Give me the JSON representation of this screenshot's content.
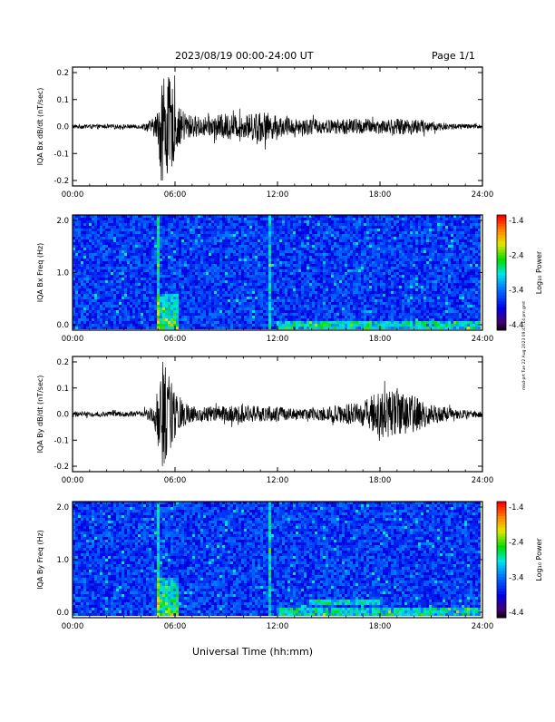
{
  "header": {
    "title": "2023/08/19  00:00-24:00 UT",
    "page": "Page 1/1"
  },
  "xaxis": {
    "label": "Universal Time (hh:mm)",
    "ticks": [
      "00:00",
      "06:00",
      "12:00",
      "18:00",
      "24:00"
    ],
    "range_hours": [
      0,
      24
    ]
  },
  "side_note": "mkd-prt Tue 22 Aug 2023 09:47:14 pm gmt",
  "chart_data": [
    {
      "type": "line",
      "ylabel": "IQA Bx dB/dt (nT/sec)",
      "yticks": [
        "0.2",
        "0.1",
        "0.0",
        "-0.1",
        "-0.2"
      ],
      "ylim": [
        -0.2,
        0.2
      ],
      "envelope": {
        "hours": [
          0,
          1,
          2,
          3,
          4,
          4.7,
          5.0,
          5.2,
          5.5,
          5.8,
          6.2,
          7,
          8,
          9,
          10,
          11,
          12,
          13,
          14,
          15,
          16,
          17,
          18,
          19,
          20,
          21,
          22,
          23,
          24
        ],
        "amplitude": [
          0.008,
          0.008,
          0.007,
          0.008,
          0.008,
          0.03,
          0.06,
          0.22,
          0.2,
          0.16,
          0.07,
          0.04,
          0.035,
          0.05,
          0.04,
          0.06,
          0.04,
          0.03,
          0.03,
          0.025,
          0.03,
          0.03,
          0.025,
          0.03,
          0.03,
          0.02,
          0.012,
          0.01,
          0.008
        ]
      },
      "color": "#000000"
    },
    {
      "type": "heatmap",
      "ylabel": "IQA Bx Freq (Hz)",
      "yticks": [
        "2.0",
        "1.0",
        "0.0"
      ],
      "ylim": [
        0,
        2.0
      ],
      "colorbar": {
        "label": "Log₁₀ Power",
        "ticks": [
          "-1.4",
          "-2.4",
          "-3.4",
          "-4.4"
        ],
        "range": [
          -4.4,
          -1.4
        ]
      },
      "features": [
        {
          "kind": "vertical-line",
          "hour": 5.1
        },
        {
          "kind": "vertical-line",
          "hour": 11.6
        },
        {
          "kind": "burst",
          "hour_start": 5.0,
          "hour_end": 6.2,
          "freq_max": 0.6
        },
        {
          "kind": "low-band",
          "hour_start": 12.0,
          "hour_end": 24.0,
          "freq_max": 0.15
        }
      ]
    },
    {
      "type": "line",
      "ylabel": "IQA By dB/dt (nT/sec)",
      "yticks": [
        "0.2",
        "0.1",
        "0.0",
        "-0.1",
        "-0.2"
      ],
      "ylim": [
        -0.2,
        0.2
      ],
      "envelope": {
        "hours": [
          0,
          1,
          2,
          3,
          4,
          4.7,
          5.0,
          5.2,
          5.5,
          5.8,
          6.2,
          7,
          8,
          9,
          10,
          11,
          12,
          13,
          14,
          15,
          16,
          17,
          18,
          19,
          20,
          21,
          22,
          23,
          24
        ],
        "amplitude": [
          0.012,
          0.01,
          0.01,
          0.01,
          0.012,
          0.03,
          0.1,
          0.22,
          0.2,
          0.13,
          0.06,
          0.03,
          0.03,
          0.03,
          0.035,
          0.03,
          0.03,
          0.02,
          0.02,
          0.03,
          0.04,
          0.05,
          0.09,
          0.09,
          0.07,
          0.04,
          0.025,
          0.015,
          0.012
        ]
      },
      "color": "#000000"
    },
    {
      "type": "heatmap",
      "ylabel": "IQA By Freq (Hz)",
      "yticks": [
        "2.0",
        "1.0",
        "0.0"
      ],
      "ylim": [
        0,
        2.0
      ],
      "colorbar": {
        "label": "Log₁₀ Power",
        "ticks": [
          "-1.4",
          "-2.4",
          "-3.4",
          "-4.4"
        ],
        "range": [
          -4.4,
          -1.4
        ]
      },
      "features": [
        {
          "kind": "vertical-line",
          "hour": 5.1
        },
        {
          "kind": "vertical-line",
          "hour": 11.6
        },
        {
          "kind": "burst",
          "hour_start": 5.0,
          "hour_end": 6.3,
          "freq_max": 0.65
        },
        {
          "kind": "low-band",
          "hour_start": 12.0,
          "hour_end": 24.0,
          "freq_max": 0.15
        },
        {
          "kind": "band",
          "hour_start": 14.0,
          "hour_end": 18.0,
          "freq": 0.25
        }
      ]
    }
  ]
}
